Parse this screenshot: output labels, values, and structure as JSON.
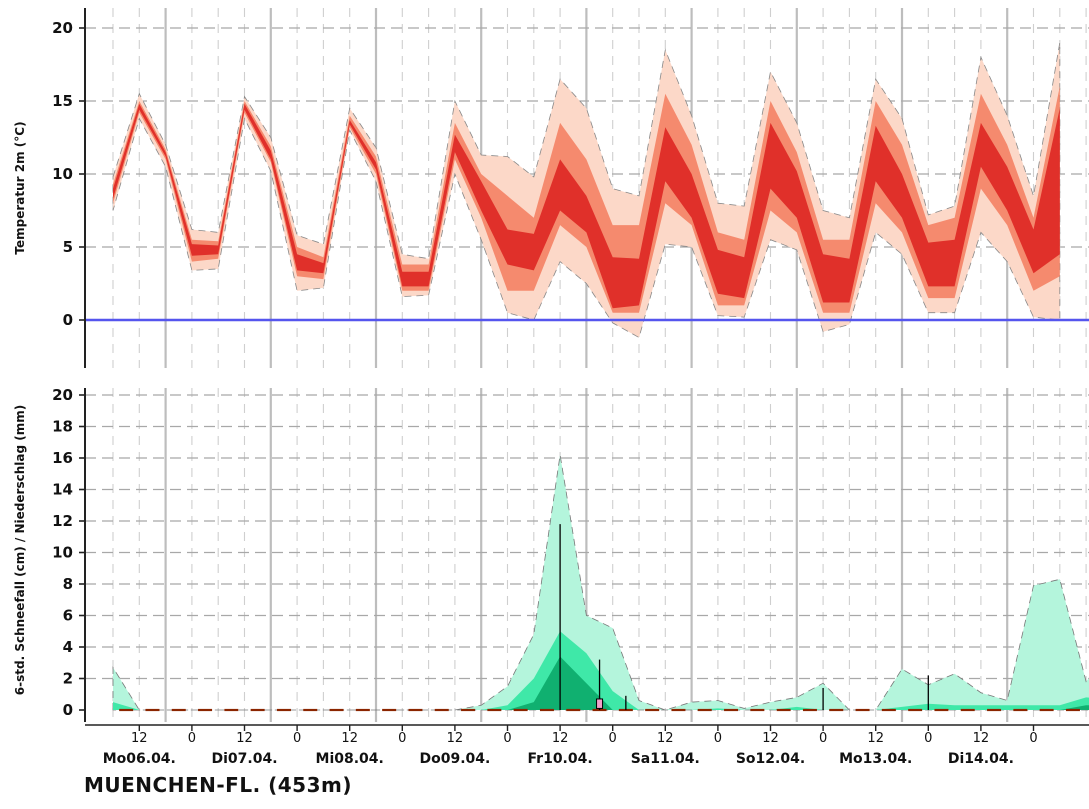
{
  "station": "MUENCHEN-FL. (453m)",
  "colors": {
    "temp_outer": "#fcd8c8",
    "temp_mid": "#f58a6e",
    "temp_inner": "#e0302a",
    "zero_line": "#5555ee",
    "precip_outer": "#b4f5dc",
    "precip_mid": "#3fe8a8",
    "precip_inner": "#10b070",
    "grid_day": "#bdbdbd",
    "grid_minor": "#cfcfcf",
    "snow_dash": "#8b2500",
    "snow_box": "#f0a0c8"
  },
  "x_ticks": [
    "12",
    "0",
    "12",
    "0",
    "12",
    "0",
    "12",
    "0",
    "12",
    "0",
    "12",
    "0",
    "12",
    "0",
    "12",
    "0",
    "12",
    "0"
  ],
  "day_labels": [
    "Mo06.04.",
    "Di07.04.",
    "Mi08.04.",
    "Do09.04.",
    "Fr10.04.",
    "Sa11.04.",
    "So12.04.",
    "Mo13.04.",
    "Di14.04."
  ],
  "chart_data": [
    {
      "type": "area",
      "ylabel": "Temperatur 2m (°C)",
      "ylim": [
        -3.5,
        21
      ],
      "yticks": [
        0,
        5,
        10,
        15,
        20
      ],
      "zero_line": 0,
      "grid": true,
      "step_hours": 6,
      "start": "Mo06.04. 06",
      "bands": {
        "outer_lo": [
          7.5,
          13.8,
          10.5,
          3.4,
          3.5,
          13.8,
          10.2,
          2.0,
          2.2,
          13.0,
          9.5,
          1.6,
          1.7,
          10.0,
          5.5,
          0.5,
          0.0,
          4.0,
          2.5,
          -0.2,
          -1.2,
          5.2,
          5.0,
          0.3,
          0.2,
          5.5,
          4.8,
          -0.8,
          -0.3,
          6.0,
          4.5,
          0.5,
          0.5,
          6.0,
          4.0,
          0.2,
          0.0
        ],
        "outer_hi": [
          9.8,
          15.5,
          12.0,
          6.2,
          6.0,
          15.3,
          12.5,
          5.8,
          5.2,
          14.5,
          11.8,
          4.5,
          4.2,
          15.0,
          11.3,
          11.2,
          9.8,
          16.5,
          14.5,
          9.0,
          8.5,
          18.5,
          14.0,
          8.0,
          7.8,
          17.0,
          13.5,
          7.5,
          7.0,
          16.5,
          13.8,
          7.2,
          7.8,
          18.0,
          14.0,
          8.5,
          19.0
        ],
        "mid_lo": [
          8.0,
          14.2,
          11.0,
          4.0,
          4.2,
          14.2,
          10.8,
          3.0,
          2.8,
          13.2,
          10.0,
          2.0,
          2.0,
          11.0,
          7.0,
          2.0,
          2.0,
          6.5,
          5.0,
          0.5,
          0.5,
          8.0,
          6.5,
          1.0,
          1.0,
          7.5,
          6.0,
          0.5,
          0.5,
          8.0,
          6.0,
          1.5,
          1.5,
          9.0,
          6.5,
          2.0,
          3.0
        ],
        "mid_hi": [
          9.3,
          15.0,
          11.7,
          5.5,
          5.4,
          15.0,
          11.9,
          5.0,
          4.3,
          14.0,
          11.2,
          3.8,
          3.8,
          13.5,
          10.0,
          8.5,
          7.0,
          13.5,
          11.0,
          6.5,
          6.5,
          15.5,
          12.0,
          6.0,
          5.5,
          15.0,
          11.5,
          5.5,
          5.5,
          15.0,
          12.0,
          6.5,
          7.0,
          15.5,
          12.0,
          7.0,
          16.0
        ],
        "inner_lo": [
          8.3,
          14.4,
          11.2,
          4.4,
          4.5,
          14.4,
          11.0,
          3.4,
          3.2,
          13.4,
          10.3,
          2.3,
          2.3,
          11.5,
          7.5,
          3.8,
          3.4,
          7.5,
          6.0,
          0.8,
          1.0,
          9.5,
          7.0,
          1.8,
          1.5,
          9.0,
          7.0,
          1.2,
          1.2,
          9.5,
          7.0,
          2.3,
          2.3,
          10.5,
          7.5,
          3.2,
          4.5
        ],
        "inner_hi": [
          9.0,
          14.8,
          11.5,
          5.2,
          5.1,
          14.8,
          11.6,
          4.5,
          3.9,
          13.7,
          10.8,
          3.3,
          3.3,
          12.7,
          9.5,
          6.2,
          5.9,
          11.0,
          8.5,
          4.3,
          4.2,
          13.2,
          10.0,
          4.8,
          4.3,
          13.5,
          10.2,
          4.5,
          4.2,
          13.3,
          10.0,
          5.3,
          5.5,
          13.5,
          10.5,
          6.2,
          14.5
        ]
      }
    },
    {
      "type": "area",
      "ylabel": "6-std. Schneefall (cm) / Niederschlag (mm)",
      "ylim": [
        -0.8,
        21
      ],
      "yticks": [
        0,
        2,
        4,
        6,
        8,
        10,
        12,
        14,
        16,
        18,
        20
      ],
      "grid": true,
      "step_hours": 6,
      "start": "Mo06.04. 06",
      "bands": {
        "outer": [
          2.7,
          0,
          0,
          0,
          0,
          0,
          0,
          0,
          0,
          0,
          0,
          0,
          0,
          0,
          0.3,
          1.5,
          4.8,
          16.2,
          6.0,
          5.2,
          0.6,
          0,
          0.5,
          0.6,
          0.1,
          0.5,
          0.8,
          1.7,
          0,
          0,
          2.6,
          1.6,
          2.3,
          1.1,
          0.6,
          7.9,
          8.3,
          1.8,
          3.8
        ],
        "mid": [
          0.5,
          0,
          0,
          0,
          0,
          0,
          0,
          0,
          0,
          0,
          0,
          0,
          0,
          0,
          0,
          0.3,
          2.0,
          5.0,
          3.6,
          1.2,
          0,
          0,
          0,
          0.1,
          0,
          0,
          0.2,
          0,
          0,
          0,
          0.2,
          0.4,
          0.3,
          0.3,
          0.3,
          0.3,
          0.3,
          0.8,
          0.7
        ],
        "inner": [
          0,
          0,
          0,
          0,
          0,
          0,
          0,
          0,
          0,
          0,
          0,
          0,
          0,
          0,
          0,
          0,
          0.5,
          3.4,
          1.7,
          0,
          0,
          0,
          0,
          0,
          0,
          0,
          0,
          0,
          0,
          0,
          0,
          0,
          0,
          0,
          0,
          0,
          0,
          0.3,
          0.3
        ]
      },
      "snow_whiskers": [
        {
          "x": 17,
          "max": 11.8
        },
        {
          "x": 18.5,
          "max": 3.2
        },
        {
          "x": 19.5,
          "max": 0.9
        },
        {
          "x": 27,
          "max": 1.4
        },
        {
          "x": 31,
          "max": 2.2
        }
      ],
      "snow_box": {
        "x": 18.5,
        "lo": 0.1,
        "hi": 0.7
      }
    }
  ]
}
